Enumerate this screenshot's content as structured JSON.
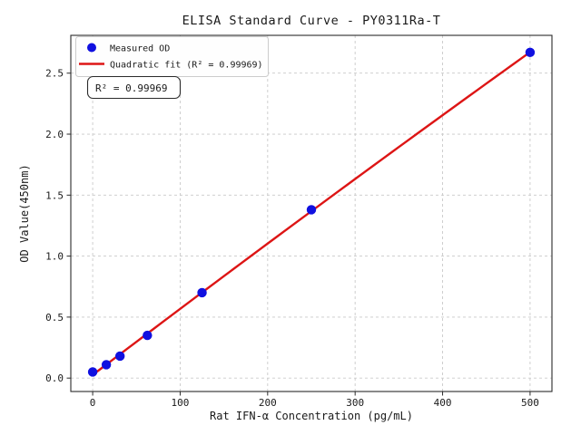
{
  "chart_data": {
    "type": "scatter",
    "title": "ELISA Standard Curve - PY0311Ra-T",
    "xlabel": "Rat IFN-α Concentration (pg/mL)",
    "ylabel": "OD Value(450nm)",
    "xlim": [
      -25,
      525
    ],
    "ylim": [
      -0.11,
      2.81
    ],
    "x_ticks": [
      0,
      100,
      200,
      300,
      400,
      500
    ],
    "x_tick_labels": [
      "0",
      "100",
      "200",
      "300",
      "400",
      "500"
    ],
    "y_ticks": [
      0,
      0.5,
      1.0,
      1.5,
      2.0,
      2.5
    ],
    "y_tick_labels": [
      "0.0",
      "0.5",
      "1.0",
      "1.5",
      "2.0",
      "2.5"
    ],
    "grid": true,
    "legend_position": "upper-left",
    "series": [
      {
        "name": "Measured OD",
        "type": "scatter",
        "color": "#1010e0",
        "x": [
          0,
          15.6,
          31.25,
          62.5,
          125,
          250,
          500
        ],
        "y": [
          0.05,
          0.11,
          0.18,
          0.35,
          0.7,
          1.38,
          2.67
        ]
      },
      {
        "name": "Quadratic fit (R² = 0.99969)",
        "type": "line",
        "color": "#dd1515",
        "fit": "quadratic",
        "x_range": [
          0,
          500
        ]
      }
    ],
    "annotation": {
      "text": "R² = 0.99969"
    },
    "r_squared": "0.99969",
    "colors": {
      "marker": "#1010e0",
      "fit_line": "#dd1515",
      "grid": "#c9c9c9",
      "frame": "#2b2b2b",
      "background": "#ffffff"
    }
  }
}
